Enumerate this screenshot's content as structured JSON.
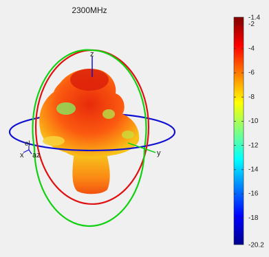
{
  "chart_data": {
    "type": "3d-radiation-pattern",
    "title": "2300MHz",
    "axis_labels": {
      "x": "x",
      "y": "y",
      "z": "z",
      "az": "az",
      "el": "el"
    },
    "colorbar": {
      "min": -20.2,
      "max": -1.4,
      "ticks": [
        -2,
        -4,
        -6,
        -8,
        -10,
        -12,
        -14,
        -16,
        -18
      ],
      "min_label": "-20.2",
      "max_label": "-1.4",
      "colormap": "jet"
    },
    "great_circles": [
      {
        "plane": "azimuth (xy)",
        "color": "#1010d0"
      },
      {
        "plane": "elevation (xz)",
        "color": "#e01010"
      },
      {
        "plane": "elevation (yz)",
        "color": "#10d010"
      }
    ]
  }
}
